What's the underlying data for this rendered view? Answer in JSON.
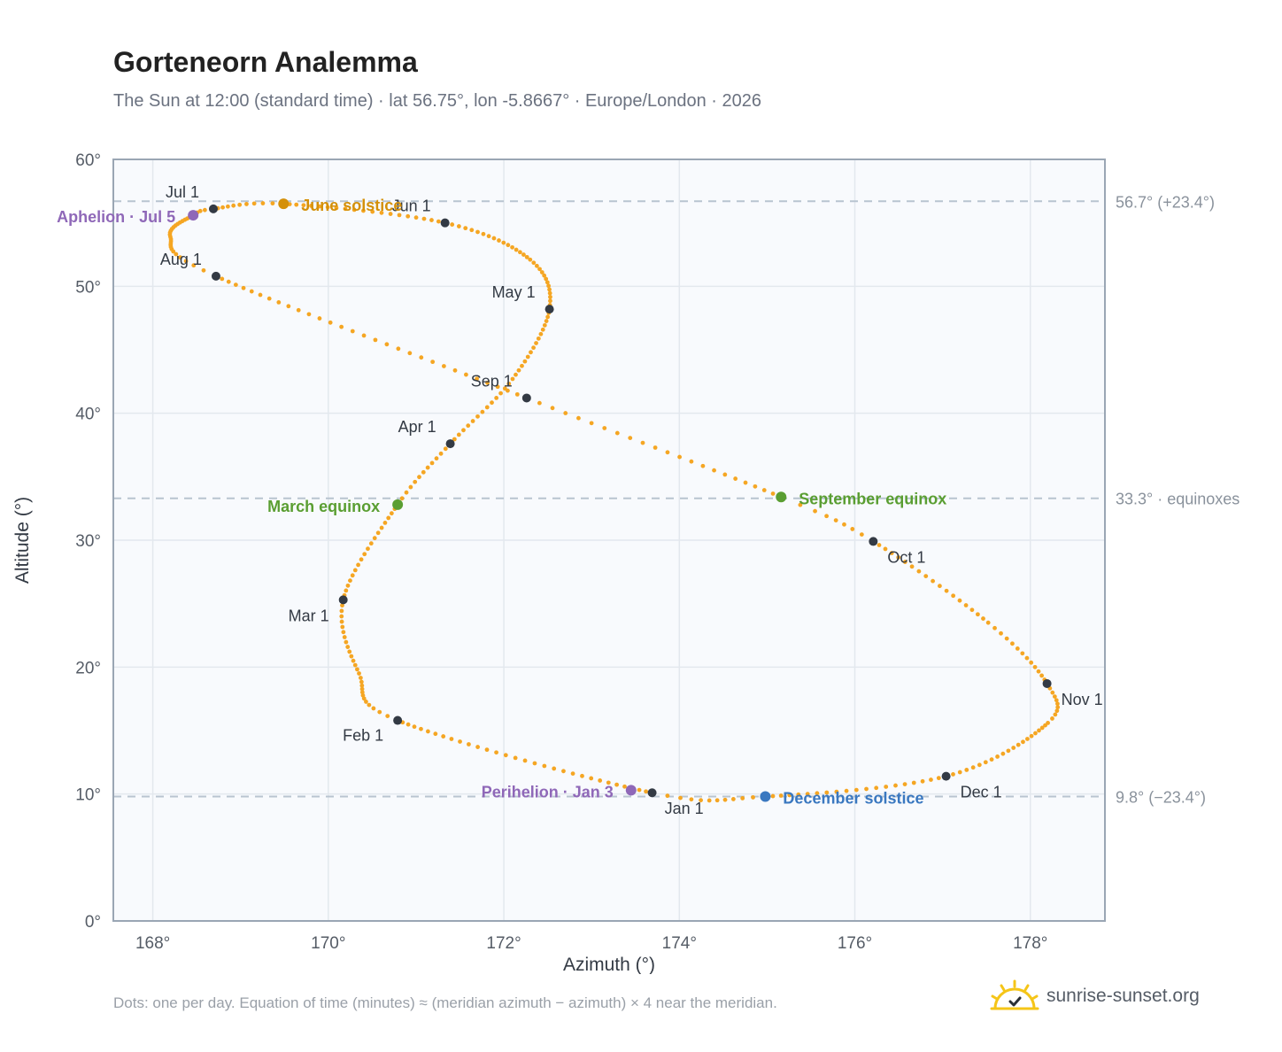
{
  "title": "Gorteneorn Analemma",
  "subtitle": "The Sun at 12:00 (standard time) · lat 56.75°, lon -5.8667° · Europe/London · 2026",
  "footnote": "Dots: one per day. Equation of time (minutes) ≈ (meridian azimuth − azimuth) × 4 near the meridian.",
  "brand": {
    "name": "sunrise-sunset.org",
    "logo_icon": "sun-logo-icon",
    "color": "#f5c518"
  },
  "colors": {
    "curve": "#f5a623",
    "month_marker": "#333a44",
    "solstice_june": "#d4900a",
    "solstice_december": "#3a78c0",
    "equinox": "#5a9e32",
    "apsis": "#8f68b8",
    "reference_line": "#b8c4d0",
    "plot_background": "#f8fafd",
    "grid": "#e3e8ee"
  },
  "chart_data": {
    "type": "scatter",
    "xlabel": "Azimuth (°)",
    "ylabel": "Altitude (°)",
    "xlim": [
      167.55,
      178.85
    ],
    "ylim": [
      0,
      60
    ],
    "x_ticks": [
      168,
      170,
      172,
      174,
      176,
      178
    ],
    "x_tick_labels": [
      "168°",
      "170°",
      "172°",
      "174°",
      "176°",
      "178°"
    ],
    "y_ticks": [
      0,
      10,
      20,
      30,
      40,
      50,
      60
    ],
    "y_tick_labels": [
      "0°",
      "10°",
      "20°",
      "30°",
      "40°",
      "50°",
      "60°"
    ],
    "grid": true,
    "reference_lines": [
      {
        "y": 56.7,
        "label": "56.7° (+23.4°)"
      },
      {
        "y": 33.3,
        "label": "33.3° · equinoxes"
      },
      {
        "y": 9.8,
        "label": "9.8° (−23.4°)"
      }
    ],
    "curve_anchors": [
      {
        "day": 1,
        "x": 173.69,
        "y": 10.1
      },
      {
        "day": 32,
        "x": 170.79,
        "y": 15.8
      },
      {
        "day": 45,
        "x": 170.35,
        "y": 19.5
      },
      {
        "day": 60,
        "x": 170.17,
        "y": 25.3
      },
      {
        "day": 79,
        "x": 170.79,
        "y": 32.8
      },
      {
        "day": 91,
        "x": 171.39,
        "y": 37.6
      },
      {
        "day": 105,
        "x": 172.1,
        "y": 42.7
      },
      {
        "day": 121,
        "x": 172.52,
        "y": 48.2
      },
      {
        "day": 135,
        "x": 172.3,
        "y": 52.1
      },
      {
        "day": 152,
        "x": 171.33,
        "y": 55.0
      },
      {
        "day": 172,
        "x": 169.49,
        "y": 56.5
      },
      {
        "day": 182,
        "x": 168.69,
        "y": 56.1
      },
      {
        "day": 186,
        "x": 168.46,
        "y": 55.6
      },
      {
        "day": 200,
        "x": 168.2,
        "y": 53.9
      },
      {
        "day": 213,
        "x": 168.72,
        "y": 50.8
      },
      {
        "day": 244,
        "x": 172.26,
        "y": 41.2
      },
      {
        "day": 266,
        "x": 175.16,
        "y": 33.4
      },
      {
        "day": 274,
        "x": 176.21,
        "y": 29.9
      },
      {
        "day": 292,
        "x": 177.52,
        "y": 23.5
      },
      {
        "day": 305,
        "x": 178.19,
        "y": 18.7
      },
      {
        "day": 315,
        "x": 178.2,
        "y": 15.6
      },
      {
        "day": 335,
        "x": 177.04,
        "y": 11.4
      },
      {
        "day": 355,
        "x": 174.98,
        "y": 9.8
      },
      {
        "day": 366,
        "x": 173.69,
        "y": 10.1
      }
    ],
    "month_markers": [
      {
        "label": "Jan 1",
        "x": 173.69,
        "y": 10.1,
        "anchor": "start",
        "ldx": 14,
        "ldy": 24
      },
      {
        "label": "Feb 1",
        "x": 170.79,
        "y": 15.8,
        "anchor": "end",
        "ldx": -16,
        "ldy": 23
      },
      {
        "label": "Mar 1",
        "x": 170.17,
        "y": 25.3,
        "anchor": "end",
        "ldx": -16,
        "ldy": 24
      },
      {
        "label": "Apr 1",
        "x": 171.39,
        "y": 37.6,
        "anchor": "end",
        "ldx": -16,
        "ldy": -13
      },
      {
        "label": "May 1",
        "x": 172.52,
        "y": 48.2,
        "anchor": "end",
        "ldx": -16,
        "ldy": -13
      },
      {
        "label": "Jun 1",
        "x": 171.33,
        "y": 55.0,
        "anchor": "end",
        "ldx": -16,
        "ldy": -13
      },
      {
        "label": "Jul 1",
        "x": 168.69,
        "y": 56.1,
        "anchor": "end",
        "ldx": -16,
        "ldy": -13
      },
      {
        "label": "Aug 1",
        "x": 168.72,
        "y": 50.8,
        "anchor": "end",
        "ldx": -16,
        "ldy": -13
      },
      {
        "label": "Sep 1",
        "x": 172.26,
        "y": 41.2,
        "anchor": "end",
        "ldx": -16,
        "ldy": -13
      },
      {
        "label": "Oct 1",
        "x": 176.21,
        "y": 29.9,
        "anchor": "start",
        "ldx": 16,
        "ldy": 24
      },
      {
        "label": "Nov 1",
        "x": 178.19,
        "y": 18.7,
        "anchor": "start",
        "ldx": 16,
        "ldy": 24
      },
      {
        "label": "Dec 1",
        "x": 177.04,
        "y": 11.4,
        "anchor": "start",
        "ldx": 16,
        "ldy": 24
      }
    ],
    "events": [
      {
        "label": "June solstice",
        "x": 169.49,
        "y": 56.5,
        "color": "#d4900a",
        "anchor": "start",
        "ldx": 20,
        "ldy": 8
      },
      {
        "label": "December solstice",
        "x": 174.98,
        "y": 9.8,
        "color": "#3a78c0",
        "anchor": "start",
        "ldx": 20,
        "ldy": 8
      },
      {
        "label": "March equinox",
        "x": 170.79,
        "y": 32.8,
        "color": "#5a9e32",
        "anchor": "end",
        "ldx": -20,
        "ldy": 8
      },
      {
        "label": "September equinox",
        "x": 175.16,
        "y": 33.4,
        "color": "#5a9e32",
        "anchor": "start",
        "ldx": 20,
        "ldy": 8
      },
      {
        "label": "Aphelion · Jul 5",
        "x": 168.46,
        "y": 55.6,
        "color": "#8f68b8",
        "anchor": "end",
        "ldx": -20,
        "ldy": 8
      },
      {
        "label": "Perihelion · Jan 3",
        "x": 173.45,
        "y": 10.3,
        "color": "#8f68b8",
        "anchor": "end",
        "ldx": -20,
        "ldy": 8
      }
    ]
  }
}
